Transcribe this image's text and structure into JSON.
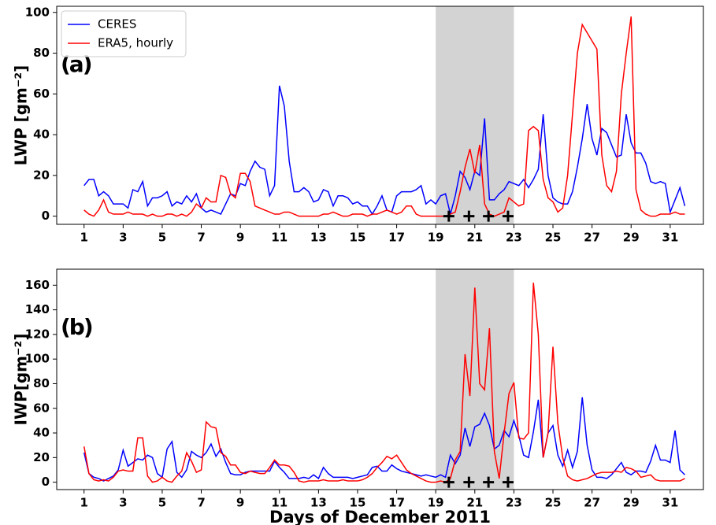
{
  "chart_data": [
    {
      "type": "line",
      "annotation": "(a)",
      "y_label": "LWP [gm⁻²]",
      "legend": "upper left",
      "xlim": [
        -0.4,
        32.7
      ],
      "ylim": [
        -4,
        103
      ],
      "xticks": [
        1,
        3,
        5,
        7,
        9,
        11,
        13,
        15,
        17,
        19,
        21,
        23,
        25,
        27,
        29,
        31
      ],
      "yticks": [
        0,
        20,
        40,
        60,
        80,
        100
      ],
      "span": [
        19,
        23
      ],
      "span_color": "#d3d3d3",
      "markers": {
        "x": [
          19.67,
          20.7,
          21.7,
          22.7
        ],
        "y": [
          0,
          0,
          0,
          0
        ],
        "color": "#000000"
      },
      "x": [
        1,
        1.25,
        1.5,
        1.75,
        2,
        2.25,
        2.5,
        2.75,
        3,
        3.25,
        3.5,
        3.75,
        4,
        4.25,
        4.5,
        4.75,
        5,
        5.25,
        5.5,
        5.75,
        6,
        6.25,
        6.5,
        6.75,
        7,
        7.25,
        7.5,
        7.75,
        8,
        8.25,
        8.5,
        8.75,
        9,
        9.25,
        9.5,
        9.75,
        10,
        10.25,
        10.5,
        10.75,
        11,
        11.25,
        11.5,
        11.75,
        12,
        12.25,
        12.5,
        12.75,
        13,
        13.25,
        13.5,
        13.75,
        14,
        14.25,
        14.5,
        14.75,
        15,
        15.25,
        15.5,
        15.75,
        16,
        16.25,
        16.5,
        16.75,
        17,
        17.25,
        17.5,
        17.75,
        18,
        18.25,
        18.5,
        18.75,
        19,
        19.25,
        19.5,
        19.75,
        20,
        20.25,
        20.5,
        20.75,
        21,
        21.25,
        21.5,
        21.75,
        22,
        22.25,
        22.5,
        22.75,
        23,
        23.25,
        23.5,
        23.75,
        24,
        24.25,
        24.5,
        24.75,
        25,
        25.25,
        25.5,
        25.75,
        26,
        26.25,
        26.5,
        26.75,
        27,
        27.25,
        27.5,
        27.75,
        28,
        28.25,
        28.5,
        28.75,
        29,
        29.25,
        29.5,
        29.75,
        30,
        30.25,
        30.5,
        30.75,
        31,
        31.25,
        31.5,
        31.75
      ],
      "series": [
        {
          "name": "CERES",
          "color": "#0000ff",
          "values": [
            15,
            18,
            18,
            10,
            12,
            10,
            6,
            6,
            6,
            4,
            13,
            12,
            17,
            5,
            9,
            9,
            10,
            12,
            5,
            7,
            6,
            10,
            7,
            11,
            4,
            2,
            3,
            2,
            1,
            6,
            11,
            10,
            16,
            15,
            22,
            27,
            24,
            23,
            10,
            15,
            64,
            54,
            27,
            12,
            12,
            14,
            12,
            7,
            8,
            13,
            12,
            5,
            10,
            10,
            9,
            6,
            7,
            5,
            5,
            1,
            5,
            10,
            3,
            2,
            10,
            12,
            12,
            12,
            13,
            15,
            6,
            8,
            6,
            10,
            11,
            1,
            10,
            22,
            19,
            13,
            22,
            20,
            48,
            8,
            8,
            11,
            13,
            17,
            16,
            15,
            18,
            14,
            18,
            23,
            50,
            20,
            9,
            7,
            6,
            6,
            12,
            24,
            38,
            55,
            38,
            30,
            43,
            41,
            35,
            29,
            30,
            50,
            36,
            31,
            31,
            26,
            17,
            16,
            17,
            16,
            2,
            8,
            14,
            5
          ]
        },
        {
          "name": "ERA5, hourly",
          "color": "#ff0000",
          "values": [
            3,
            1,
            0,
            3,
            8,
            2,
            1,
            1,
            1,
            2,
            1,
            1,
            1,
            0,
            1,
            0,
            0,
            1,
            1,
            0,
            1,
            0,
            2,
            6,
            4,
            9,
            7,
            7,
            20,
            19,
            11,
            9,
            21,
            21,
            17,
            5,
            4,
            3,
            2,
            1,
            1,
            2,
            2,
            1,
            0,
            0,
            0,
            0,
            0,
            1,
            1,
            2,
            1,
            0,
            0,
            1,
            1,
            1,
            0,
            1,
            1,
            2,
            3,
            2,
            1,
            2,
            5,
            5,
            1,
            0,
            0,
            0,
            0,
            0,
            0,
            1,
            2,
            12,
            24,
            33,
            21,
            35,
            6,
            1,
            0,
            1,
            2,
            9,
            7,
            5,
            6,
            42,
            44,
            42,
            18,
            9,
            7,
            2,
            4,
            20,
            50,
            80,
            94,
            90,
            86,
            82,
            30,
            15,
            12,
            22,
            60,
            80,
            98,
            13,
            3,
            1,
            0,
            0,
            1,
            1,
            1,
            2,
            1,
            1
          ]
        }
      ]
    },
    {
      "type": "line",
      "annotation": "(b)",
      "y_label": "IWP[gm⁻²]",
      "x_label": "Days of December 2011",
      "xlim": [
        -0.4,
        32.7
      ],
      "ylim": [
        -6,
        173
      ],
      "xticks": [
        1,
        3,
        5,
        7,
        9,
        11,
        13,
        15,
        17,
        19,
        21,
        23,
        25,
        27,
        29,
        31
      ],
      "yticks": [
        0,
        20,
        40,
        60,
        80,
        100,
        120,
        140,
        160
      ],
      "span": [
        19,
        23
      ],
      "span_color": "#d3d3d3",
      "markers": {
        "x": [
          19.67,
          20.7,
          21.7,
          22.7
        ],
        "y": [
          0,
          0,
          0,
          0
        ],
        "color": "#000000"
      },
      "x": [
        1,
        1.25,
        1.5,
        1.75,
        2,
        2.25,
        2.5,
        2.75,
        3,
        3.25,
        3.5,
        3.75,
        4,
        4.25,
        4.5,
        4.75,
        5,
        5.25,
        5.5,
        5.75,
        6,
        6.25,
        6.5,
        6.75,
        7,
        7.25,
        7.5,
        7.75,
        8,
        8.25,
        8.5,
        8.75,
        9,
        9.25,
        9.5,
        9.75,
        10,
        10.25,
        10.5,
        10.75,
        11,
        11.25,
        11.5,
        11.75,
        12,
        12.25,
        12.5,
        12.75,
        13,
        13.25,
        13.5,
        13.75,
        14,
        14.25,
        14.5,
        14.75,
        15,
        15.25,
        15.5,
        15.75,
        16,
        16.25,
        16.5,
        16.75,
        17,
        17.25,
        17.5,
        17.75,
        18,
        18.25,
        18.5,
        18.75,
        19,
        19.25,
        19.5,
        19.75,
        20,
        20.25,
        20.5,
        20.75,
        21,
        21.25,
        21.5,
        21.75,
        22,
        22.25,
        22.5,
        22.75,
        23,
        23.25,
        23.5,
        23.75,
        24,
        24.25,
        24.5,
        24.75,
        25,
        25.25,
        25.5,
        25.75,
        26,
        26.25,
        26.5,
        26.75,
        27,
        27.25,
        27.5,
        27.75,
        28,
        28.25,
        28.5,
        28.75,
        29,
        29.25,
        29.5,
        29.75,
        30,
        30.25,
        30.5,
        30.75,
        31,
        31.25,
        31.5,
        31.75
      ],
      "series": [
        {
          "color": "#0000ff",
          "values": [
            24,
            7,
            4,
            3,
            1,
            3,
            5,
            10,
            26,
            13,
            16,
            19,
            18,
            22,
            20,
            7,
            4,
            27,
            33,
            8,
            4,
            10,
            25,
            22,
            20,
            24,
            31,
            21,
            27,
            16,
            7,
            6,
            6,
            8,
            9,
            9,
            9,
            9,
            9,
            17,
            12,
            8,
            3,
            3,
            3,
            4,
            3,
            6,
            3,
            12,
            7,
            4,
            4,
            4,
            4,
            3,
            4,
            5,
            6,
            12,
            13,
            9,
            9,
            14,
            11,
            9,
            8,
            7,
            6,
            5,
            6,
            5,
            4,
            6,
            4,
            22,
            15,
            22,
            44,
            29,
            45,
            47,
            56,
            46,
            27,
            30,
            42,
            37,
            50,
            38,
            22,
            20,
            41,
            67,
            20,
            40,
            46,
            22,
            13,
            26,
            12,
            25,
            69,
            30,
            10,
            4,
            4,
            3,
            6,
            11,
            16,
            8,
            6,
            9,
            9,
            8,
            17,
            30,
            18,
            18,
            16,
            42,
            10,
            6
          ]
        },
        {
          "color": "#ff0000",
          "values": [
            29,
            7,
            2,
            1,
            2,
            1,
            4,
            9,
            10,
            9,
            9,
            36,
            36,
            5,
            0,
            1,
            4,
            1,
            0,
            5,
            9,
            24,
            17,
            8,
            10,
            49,
            45,
            44,
            24,
            21,
            14,
            14,
            8,
            7,
            9,
            8,
            7,
            7,
            12,
            18,
            14,
            14,
            13,
            8,
            1,
            0,
            1,
            1,
            1,
            2,
            1,
            1,
            1,
            2,
            1,
            1,
            1,
            2,
            4,
            7,
            12,
            16,
            21,
            19,
            22,
            16,
            10,
            7,
            5,
            3,
            1,
            0,
            0,
            1,
            0,
            3,
            18,
            25,
            104,
            70,
            158,
            80,
            75,
            125,
            25,
            3,
            40,
            72,
            81,
            36,
            35,
            40,
            162,
            120,
            20,
            40,
            110,
            48,
            20,
            5,
            2,
            1,
            2,
            3,
            5,
            7,
            8,
            8,
            8,
            9,
            8,
            12,
            11,
            9,
            4,
            5,
            6,
            2,
            1,
            1,
            1,
            1,
            1,
            3
          ]
        }
      ]
    }
  ]
}
